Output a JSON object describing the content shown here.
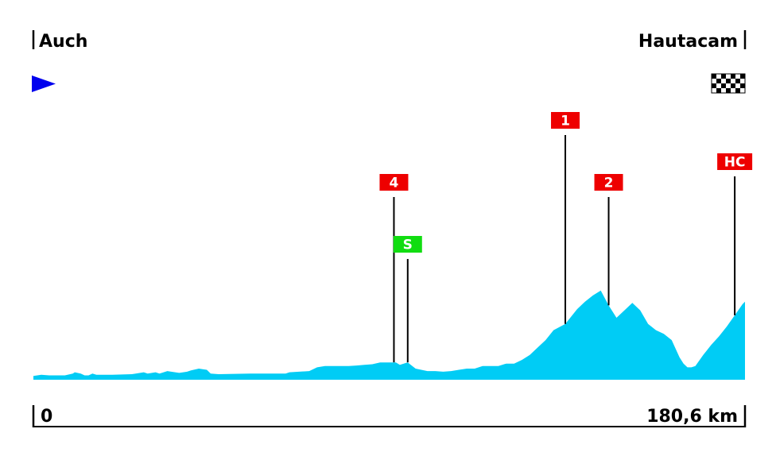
{
  "colors": {
    "profile_fill": "#00ccf5",
    "category_badge": "#ee0000",
    "sprint_badge": "#11dd11",
    "start_flag": "#0000ee",
    "frame": "#000000"
  },
  "icons": {
    "start": "start-flag-icon",
    "finish": "checkered-finish-icon"
  },
  "chart_data": {
    "type": "area",
    "title": "",
    "start_town": "Auch",
    "finish_town": "Hautacam",
    "distance_start_label": "0",
    "distance_end_label": "180,6 km",
    "xlim": [
      0,
      180.6
    ],
    "x_unit": "km",
    "profile": {
      "x": [
        0,
        2,
        4,
        6,
        8,
        10,
        10.5,
        12,
        13,
        14,
        15,
        16,
        18,
        20,
        25,
        26,
        28,
        29,
        31,
        32,
        34,
        35,
        36,
        37,
        39,
        40,
        42,
        44,
        45,
        47,
        55,
        58,
        60,
        62,
        64,
        65,
        70,
        72,
        74,
        76,
        78,
        80,
        82,
        84,
        86,
        88,
        90,
        91,
        92,
        93,
        94,
        95,
        97,
        100,
        102,
        104,
        106,
        108,
        110,
        112,
        114,
        116,
        118,
        120,
        122,
        124,
        126,
        128,
        130,
        132,
        135,
        138,
        140,
        142,
        144,
        146,
        148,
        150,
        152,
        154,
        156,
        158,
        160,
        162,
        164,
        165,
        166,
        167,
        168,
        170,
        172,
        174,
        176,
        178,
        180,
        180.6
      ],
      "y": [
        3,
        4,
        3.5,
        3.5,
        3.5,
        5,
        6,
        5,
        3.5,
        3.5,
        5,
        4,
        4,
        4,
        4.5,
        5,
        6,
        5,
        6,
        5,
        7,
        6.5,
        6,
        5.5,
        6.5,
        7.5,
        9,
        8,
        5,
        4.5,
        5,
        5,
        5,
        5,
        5,
        6,
        7,
        10,
        11,
        11,
        11,
        11,
        11.5,
        12,
        12.5,
        14,
        14,
        14,
        14,
        12,
        13,
        14,
        9,
        7,
        7,
        6.5,
        7,
        8,
        9,
        9,
        11,
        11,
        11,
        13,
        13,
        16,
        20,
        26,
        32,
        40,
        45,
        57,
        63,
        68,
        72,
        60,
        50,
        56,
        62,
        56,
        45,
        40,
        37,
        32,
        18,
        13,
        10,
        10,
        11,
        20,
        28,
        35,
        43,
        52,
        61,
        63
      ],
      "ylim": [
        0,
        100
      ]
    },
    "climbs": [
      {
        "label": "4",
        "type": "category",
        "km": 91.5
      },
      {
        "label": "S",
        "type": "sprint",
        "km": 95
      },
      {
        "label": "1",
        "type": "category",
        "km": 135
      },
      {
        "label": "2",
        "type": "category",
        "km": 146
      },
      {
        "label": "HC",
        "type": "category",
        "km": 178
      }
    ]
  }
}
